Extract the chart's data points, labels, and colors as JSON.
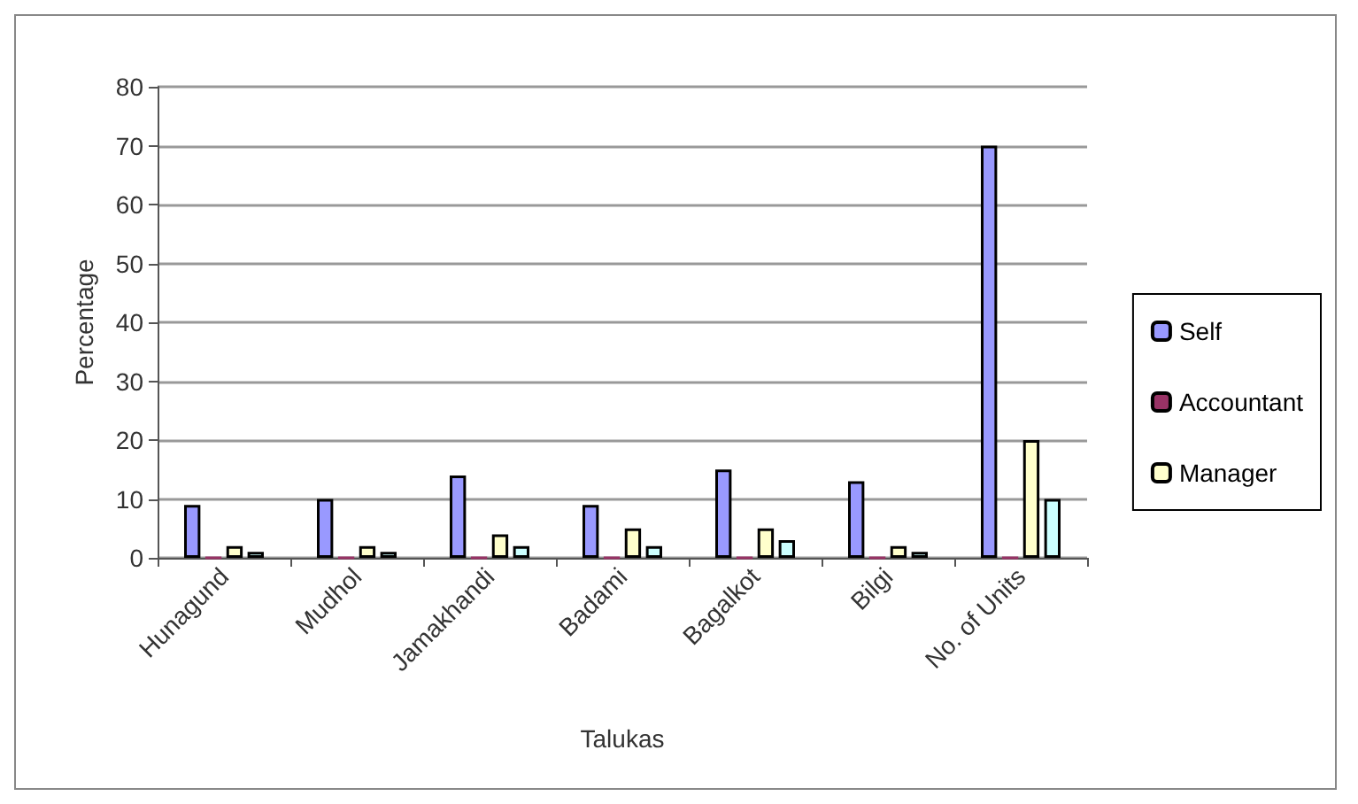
{
  "chart_data": {
    "type": "bar",
    "xlabel": "Talukas",
    "ylabel": "Percentage",
    "categories": [
      "Hunagund",
      "Mudhol",
      "Jamakhandi",
      "Badami",
      "Bagalkot",
      "Bilgi",
      "No. of Units"
    ],
    "series": [
      {
        "name": "Self",
        "color": "#9999ff",
        "values": [
          9,
          10,
          14,
          9,
          15,
          13,
          70
        ]
      },
      {
        "name": "Accountant",
        "color": "#993366",
        "values": [
          0,
          0,
          0,
          0,
          0,
          0,
          0
        ]
      },
      {
        "name": "Manager",
        "color": "#ffffcc",
        "values": [
          2,
          2,
          4,
          5,
          5,
          2,
          20
        ]
      },
      {
        "color": "#ccffff",
        "values": [
          1,
          1,
          2,
          2,
          3,
          1,
          10
        ]
      }
    ],
    "ylim": [
      0,
      80
    ],
    "yticks": [
      0,
      10,
      20,
      30,
      40,
      50,
      60,
      70,
      80
    ],
    "grid": "y",
    "legend": "right"
  }
}
